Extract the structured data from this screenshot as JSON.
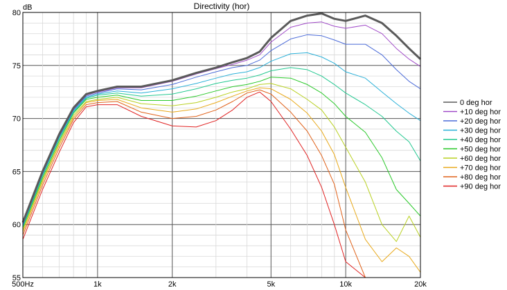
{
  "chart_data": {
    "type": "line",
    "title": "Directivity (hor)",
    "ylabel": "dB",
    "xscale": "log",
    "xlim": [
      500,
      20000
    ],
    "ylim": [
      55,
      80
    ],
    "grid": true,
    "legend_position": "right",
    "x_ticks": [
      {
        "v": 500,
        "label": "500Hz"
      },
      {
        "v": 1000,
        "label": "1k"
      },
      {
        "v": 2000,
        "label": "2k"
      },
      {
        "v": 5000,
        "label": "5k"
      },
      {
        "v": 10000,
        "label": "10k"
      },
      {
        "v": 20000,
        "label": "20k"
      }
    ],
    "y_ticks": [
      55,
      60,
      65,
      70,
      75,
      80
    ],
    "x": [
      500,
      600,
      700,
      800,
      900,
      1000,
      1200,
      1500,
      2000,
      2500,
      3000,
      3500,
      4000,
      4500,
      5000,
      6000,
      7000,
      8000,
      9000,
      10000,
      12000,
      14000,
      16000,
      18000,
      20000
    ],
    "series": [
      {
        "name": "0 deg hor",
        "color": "#5a5a5a",
        "width": 3,
        "values": [
          60.2,
          65.0,
          68.5,
          71.0,
          72.3,
          72.6,
          73.0,
          73.0,
          73.6,
          74.3,
          74.8,
          75.3,
          75.7,
          76.3,
          77.6,
          79.2,
          79.7,
          79.9,
          79.4,
          79.2,
          79.7,
          79.0,
          77.8,
          76.6,
          75.6
        ]
      },
      {
        "name": "+10 deg hor",
        "color": "#a04ac8",
        "width": 1,
        "values": [
          60.1,
          64.9,
          68.4,
          70.9,
          72.2,
          72.5,
          72.9,
          72.9,
          73.5,
          74.2,
          74.7,
          75.1,
          75.5,
          76.0,
          77.2,
          78.6,
          79.0,
          79.1,
          78.7,
          78.5,
          78.8,
          78.0,
          76.6,
          75.6,
          74.9
        ]
      },
      {
        "name": "+20 deg hor",
        "color": "#4a6ad8",
        "width": 1,
        "values": [
          60.0,
          64.8,
          68.3,
          70.8,
          72.1,
          72.4,
          72.8,
          72.7,
          73.2,
          73.9,
          74.4,
          74.8,
          75.0,
          75.5,
          76.4,
          77.5,
          77.9,
          77.8,
          77.4,
          77.0,
          77.0,
          76.0,
          74.6,
          73.5,
          72.8
        ]
      },
      {
        "name": "+30 deg hor",
        "color": "#2ab0d8",
        "width": 1,
        "values": [
          59.9,
          64.7,
          68.2,
          70.7,
          72.0,
          72.3,
          72.6,
          72.4,
          72.8,
          73.3,
          73.8,
          74.2,
          74.4,
          74.8,
          75.4,
          76.1,
          76.2,
          75.8,
          75.2,
          74.4,
          73.8,
          72.5,
          71.4,
          70.5,
          69.8
        ]
      },
      {
        "name": "+40 deg hor",
        "color": "#22c890",
        "width": 1,
        "values": [
          59.8,
          64.6,
          68.1,
          70.6,
          71.9,
          72.2,
          72.4,
          72.1,
          72.3,
          72.8,
          73.3,
          73.6,
          73.8,
          74.1,
          74.5,
          74.8,
          74.6,
          74.0,
          73.2,
          72.4,
          71.3,
          70.2,
          68.8,
          67.8,
          66.0
        ]
      },
      {
        "name": "+50 deg hor",
        "color": "#28c828",
        "width": 1,
        "values": [
          59.7,
          64.4,
          67.9,
          70.5,
          71.8,
          72.0,
          72.2,
          71.7,
          71.7,
          72.1,
          72.6,
          73.0,
          73.2,
          73.5,
          73.9,
          73.8,
          73.2,
          72.4,
          71.4,
          70.2,
          68.7,
          66.3,
          63.3,
          62.0,
          60.8
        ]
      },
      {
        "name": "+60 deg hor",
        "color": "#b8d020",
        "width": 1,
        "values": [
          59.5,
          64.2,
          67.7,
          70.3,
          71.6,
          71.8,
          72.0,
          71.4,
          71.2,
          71.5,
          72.0,
          72.5,
          72.8,
          73.2,
          73.3,
          72.8,
          71.8,
          70.8,
          69.2,
          67.3,
          64.0,
          60.0,
          58.4,
          60.8,
          58.8
        ]
      },
      {
        "name": "+70 deg hor",
        "color": "#e8a818",
        "width": 1,
        "values": [
          59.3,
          64.0,
          67.5,
          70.1,
          71.5,
          71.7,
          71.8,
          71.0,
          70.6,
          70.9,
          71.5,
          72.1,
          72.6,
          72.9,
          72.8,
          71.8,
          70.5,
          68.8,
          66.6,
          63.5,
          58.6,
          56.5,
          57.8,
          57.0,
          55.5
        ]
      },
      {
        "name": "+80 deg hor",
        "color": "#e06018",
        "width": 1,
        "values": [
          59.0,
          63.7,
          67.2,
          69.9,
          71.3,
          71.5,
          71.6,
          70.6,
          70.0,
          70.2,
          70.8,
          71.6,
          72.4,
          72.7,
          72.3,
          70.6,
          68.8,
          66.5,
          63.8,
          59.5,
          55.0,
          55.0,
          55.0,
          55.0,
          55.0
        ]
      },
      {
        "name": "+90 deg hor",
        "color": "#e02020",
        "width": 1,
        "values": [
          58.6,
          63.3,
          66.8,
          69.6,
          71.1,
          71.3,
          71.3,
          70.2,
          69.3,
          69.2,
          69.8,
          70.8,
          72.0,
          72.5,
          71.6,
          69.0,
          66.5,
          63.5,
          60.0,
          56.5,
          55.0,
          55.0,
          55.0,
          55.0,
          55.0
        ]
      }
    ]
  }
}
